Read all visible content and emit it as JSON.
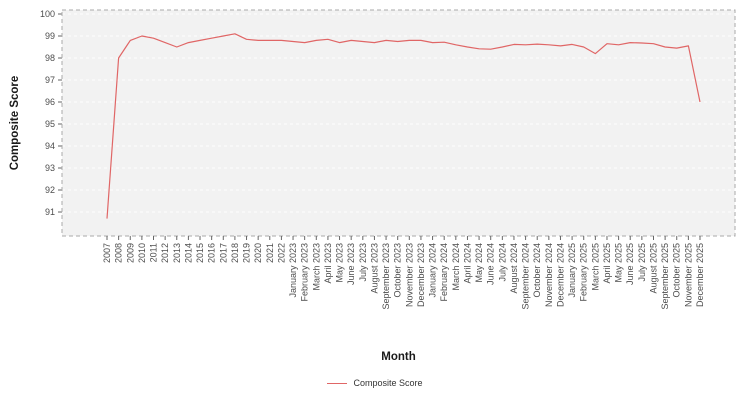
{
  "chart_data": {
    "type": "line",
    "title": "",
    "xlabel": "Month",
    "ylabel": "Composite Score",
    "ylim": [
      90,
      100.2
    ],
    "yticks": [
      91,
      92,
      93,
      94,
      95,
      96,
      97,
      98,
      99,
      100
    ],
    "grid": "horizontal-white-dashed",
    "plot_bg": "#f2f2f2",
    "legend_position": "bottom",
    "categories": [
      "2007",
      "2008",
      "2009",
      "2010",
      "2011",
      "2012",
      "2013",
      "2014",
      "2015",
      "2016",
      "2017",
      "2018",
      "2019",
      "2020",
      "2021",
      "2022",
      "January 2023",
      "February 2023",
      "March 2023",
      "April 2023",
      "May 2023",
      "June 2023",
      "July 2023",
      "August 2023",
      "September 2023",
      "October 2023",
      "November 2023",
      "December 2023",
      "January 2024",
      "February 2024",
      "March 2024",
      "April 2024",
      "May 2024",
      "June 2024",
      "July 2024",
      "August 2024",
      "September 2024",
      "October 2024",
      "November 2024",
      "December 2024",
      "January 2025",
      "February 2025",
      "March 2025",
      "April 2025",
      "May 2025",
      "June 2025",
      "July 2025",
      "August 2025",
      "September 2025",
      "October 2025",
      "November 2025",
      "December 2025"
    ],
    "series": [
      {
        "name": "Composite Score",
        "color": "#e06666",
        "values": [
          90.7,
          98.0,
          98.8,
          99.0,
          98.9,
          98.7,
          98.5,
          98.7,
          98.8,
          98.9,
          99.0,
          99.1,
          98.85,
          98.8,
          98.8,
          98.8,
          98.75,
          98.7,
          98.8,
          98.85,
          98.7,
          98.8,
          98.75,
          98.7,
          98.8,
          98.75,
          98.8,
          98.8,
          98.7,
          98.72,
          98.6,
          98.5,
          98.42,
          98.4,
          98.5,
          98.62,
          98.6,
          98.63,
          98.6,
          98.55,
          98.62,
          98.5,
          98.2,
          98.65,
          98.6,
          98.7,
          98.68,
          98.65,
          98.5,
          98.45,
          98.55,
          96.0
        ]
      }
    ],
    "legend": {
      "label": "Composite Score"
    }
  }
}
